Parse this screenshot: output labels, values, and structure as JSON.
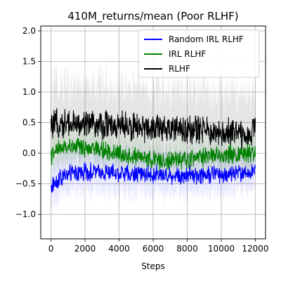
{
  "chart_data": {
    "type": "line",
    "title": "410M_returns/mean (Poor RLHF)",
    "xlabel": "Steps",
    "ylabel": "",
    "xlim": [
      -600,
      12600
    ],
    "ylim": [
      -1.4,
      2.08
    ],
    "grid": true,
    "legend_position": "top-right",
    "x_ticks": [
      0,
      2000,
      4000,
      6000,
      8000,
      10000,
      12000
    ],
    "x_tick_labels": [
      "0",
      "2000",
      "4000",
      "6000",
      "8000",
      "10000",
      "12000"
    ],
    "y_ticks": [
      -1.0,
      -0.5,
      0.0,
      0.5,
      1.0,
      1.5,
      2.0
    ],
    "y_tick_labels": [
      "−1.0",
      "−0.5",
      "0.0",
      "0.5",
      "1.0",
      "1.5",
      "2.0"
    ],
    "series": [
      {
        "name": "Random IRL RLHF",
        "color": "#0000ff",
        "x": [
          0,
          500,
          1000,
          1500,
          2000,
          2500,
          3000,
          3500,
          4000,
          4500,
          5000,
          5500,
          6000,
          6500,
          7000,
          7500,
          8000,
          8500,
          9000,
          9500,
          10000,
          10500,
          11000,
          11500,
          12000
        ],
        "mean": [
          -0.55,
          -0.4,
          -0.35,
          -0.32,
          -0.3,
          -0.3,
          -0.3,
          -0.32,
          -0.32,
          -0.33,
          -0.33,
          -0.34,
          -0.35,
          -0.35,
          -0.36,
          -0.36,
          -0.35,
          -0.35,
          -0.35,
          -0.34,
          -0.34,
          -0.33,
          -0.33,
          -0.32,
          -0.32
        ],
        "noise": 0.12,
        "band": 0.35
      },
      {
        "name": "IRL RLHF",
        "color": "#008000",
        "x": [
          0,
          500,
          1000,
          1500,
          2000,
          2500,
          3000,
          3500,
          4000,
          4500,
          5000,
          5500,
          6000,
          6500,
          7000,
          7500,
          8000,
          8500,
          9000,
          9500,
          10000,
          10500,
          11000,
          11500,
          12000
        ],
        "mean": [
          -0.05,
          0.08,
          0.1,
          0.1,
          0.08,
          0.06,
          0.05,
          0.03,
          0.0,
          -0.02,
          -0.05,
          -0.08,
          -0.1,
          -0.12,
          -0.13,
          -0.12,
          -0.1,
          -0.08,
          -0.06,
          -0.04,
          -0.03,
          -0.02,
          -0.01,
          0.0,
          0.0
        ],
        "noise": 0.12,
        "band": 0.3
      },
      {
        "name": "RLHF",
        "color": "#000000",
        "x": [
          0,
          500,
          1000,
          1500,
          2000,
          2500,
          3000,
          3500,
          4000,
          4500,
          5000,
          5500,
          6000,
          6500,
          7000,
          7500,
          8000,
          8500,
          9000,
          9500,
          10000,
          10500,
          11000,
          11500,
          12000
        ],
        "mean": [
          0.4,
          0.5,
          0.5,
          0.48,
          0.47,
          0.46,
          0.45,
          0.45,
          0.44,
          0.43,
          0.42,
          0.41,
          0.4,
          0.4,
          0.39,
          0.38,
          0.37,
          0.37,
          0.36,
          0.36,
          0.35,
          0.35,
          0.34,
          0.34,
          0.34
        ],
        "noise": 0.2,
        "band": 0.65
      }
    ]
  }
}
